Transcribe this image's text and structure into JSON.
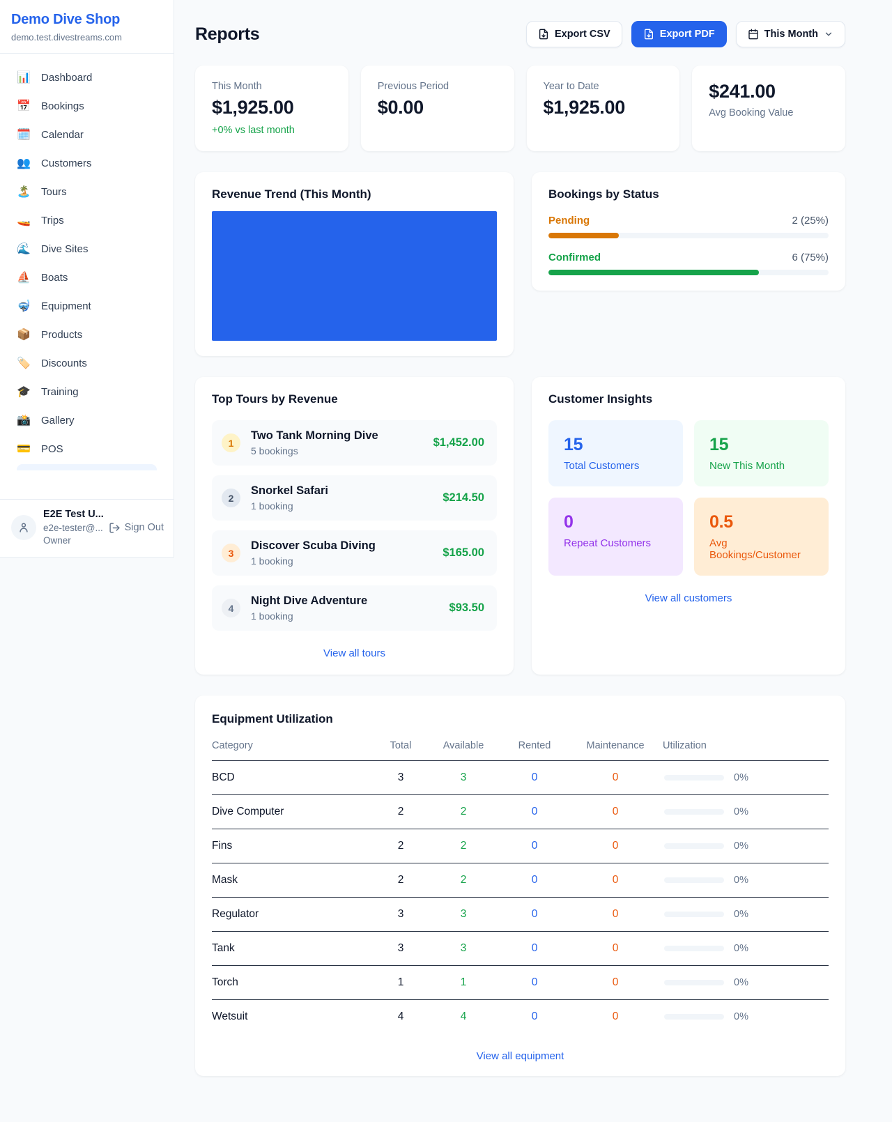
{
  "app": {
    "name": "Demo Dive Shop",
    "domain": "demo.test.divestreams.com"
  },
  "colors": {
    "accent": "#2563eb",
    "green": "#16a34a",
    "orange": "#d97706",
    "deep_orange": "#ea580c",
    "purple": "#9333ea"
  },
  "sidebar": {
    "items": [
      {
        "icon": "📊",
        "label": "Dashboard"
      },
      {
        "icon": "📅",
        "label": "Bookings"
      },
      {
        "icon": "🗓️",
        "label": "Calendar"
      },
      {
        "icon": "👥",
        "label": "Customers"
      },
      {
        "icon": "🏝️",
        "label": "Tours"
      },
      {
        "icon": "🚤",
        "label": "Trips"
      },
      {
        "icon": "🌊",
        "label": "Dive Sites"
      },
      {
        "icon": "⛵",
        "label": "Boats"
      },
      {
        "icon": "🤿",
        "label": "Equipment"
      },
      {
        "icon": "📦",
        "label": "Products"
      },
      {
        "icon": "🏷️",
        "label": "Discounts"
      },
      {
        "icon": "🎓",
        "label": "Training"
      },
      {
        "icon": "📸",
        "label": "Gallery"
      },
      {
        "icon": "💳",
        "label": "POS"
      }
    ],
    "user": {
      "name": "E2E Test U...",
      "email": "e2e-tester@...",
      "role": "Owner",
      "signout_label": "Sign Out"
    }
  },
  "header": {
    "title": "Reports",
    "export_csv_label": "Export CSV",
    "export_pdf_label": "Export PDF",
    "period_label": "This Month"
  },
  "stats": [
    {
      "label": "This Month",
      "value": "$1,925.00",
      "delta": "+0% vs last month"
    },
    {
      "label": "Previous Period",
      "value": "$0.00"
    },
    {
      "label": "Year to Date",
      "value": "$1,925.00"
    },
    {
      "label": "Avg Booking Value",
      "value": "$241.00"
    }
  ],
  "revenue_trend": {
    "title": "Revenue Trend (This Month)",
    "bar_color": "#2563eb",
    "bar_fill_pct": 100
  },
  "bookings_by_status": {
    "title": "Bookings by Status",
    "rows": [
      {
        "label": "Pending",
        "count_label": "2 (25%)",
        "pct": 25
      },
      {
        "label": "Confirmed",
        "count_label": "6 (75%)",
        "pct": 75
      }
    ]
  },
  "top_tours": {
    "title": "Top Tours by Revenue",
    "rows": [
      {
        "rank": "1",
        "name": "Two Tank Morning Dive",
        "bookings": "5 bookings",
        "amount": "$1,452.00"
      },
      {
        "rank": "2",
        "name": "Snorkel Safari",
        "bookings": "1 booking",
        "amount": "$214.50"
      },
      {
        "rank": "3",
        "name": "Discover Scuba Diving",
        "bookings": "1 booking",
        "amount": "$165.00"
      },
      {
        "rank": "4",
        "name": "Night Dive Adventure",
        "bookings": "1 booking",
        "amount": "$93.50"
      }
    ],
    "view_all_label": "View all tours"
  },
  "customer_insights": {
    "title": "Customer Insights",
    "tiles": [
      {
        "value": "15",
        "label": "Total Customers"
      },
      {
        "value": "15",
        "label": "New This Month"
      },
      {
        "value": "0",
        "label": "Repeat Customers"
      },
      {
        "value": "0.5",
        "label": "Avg Bookings/Customer"
      }
    ],
    "view_all_label": "View all customers"
  },
  "equipment": {
    "title": "Equipment Utilization",
    "headers": [
      "Category",
      "Total",
      "Available",
      "Rented",
      "Maintenance",
      "Utilization"
    ],
    "rows": [
      {
        "category": "BCD",
        "total": "3",
        "available": "3",
        "rented": "0",
        "maintenance": "0",
        "utilization": "0%"
      },
      {
        "category": "Dive Computer",
        "total": "2",
        "available": "2",
        "rented": "0",
        "maintenance": "0",
        "utilization": "0%"
      },
      {
        "category": "Fins",
        "total": "2",
        "available": "2",
        "rented": "0",
        "maintenance": "0",
        "utilization": "0%"
      },
      {
        "category": "Mask",
        "total": "2",
        "available": "2",
        "rented": "0",
        "maintenance": "0",
        "utilization": "0%"
      },
      {
        "category": "Regulator",
        "total": "3",
        "available": "3",
        "rented": "0",
        "maintenance": "0",
        "utilization": "0%"
      },
      {
        "category": "Tank",
        "total": "3",
        "available": "3",
        "rented": "0",
        "maintenance": "0",
        "utilization": "0%"
      },
      {
        "category": "Torch",
        "total": "1",
        "available": "1",
        "rented": "0",
        "maintenance": "0",
        "utilization": "0%"
      },
      {
        "category": "Wetsuit",
        "total": "4",
        "available": "4",
        "rented": "0",
        "maintenance": "0",
        "utilization": "0%"
      }
    ],
    "view_all_label": "View all equipment"
  }
}
